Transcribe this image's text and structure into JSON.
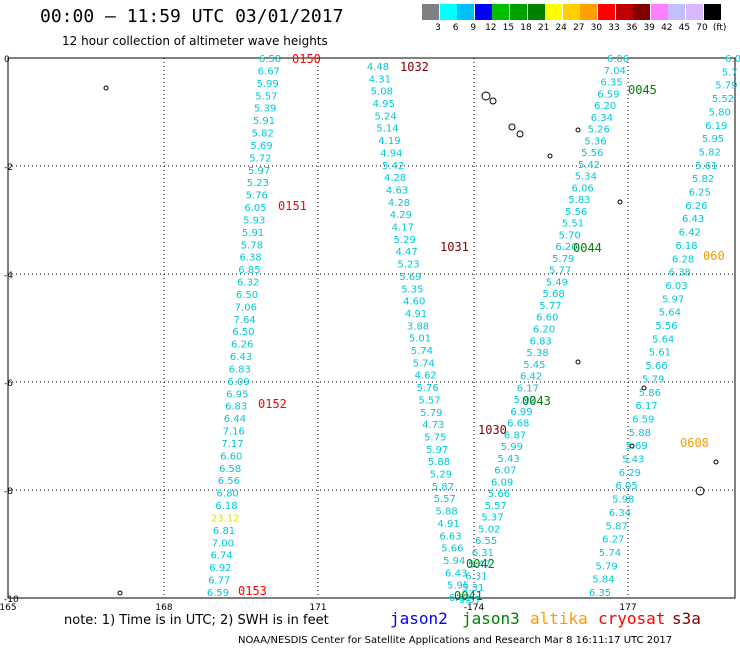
{
  "header": {
    "title": "00:00 — 11:59 UTC 03/01/2017",
    "subtitle": "12 hour collection of altimeter wave heights"
  },
  "color_legend": {
    "ticks": [
      "3",
      "6",
      "9",
      "12",
      "15",
      "18",
      "21",
      "24",
      "27",
      "30",
      "33",
      "36",
      "39",
      "42",
      "45",
      "70",
      "(ft)"
    ],
    "colors": [
      "#808080",
      "#00ffff",
      "#00c0ff",
      "#0000ff",
      "#00c000",
      "#00a000",
      "#008000",
      "#ffff00",
      "#ffd000",
      "#ffa000",
      "#ff0000",
      "#c00000",
      "#800000",
      "#ff80ff",
      "#c0c0ff",
      "#d8b8ff",
      "#000000"
    ]
  },
  "axes": {
    "y_ticks": [
      "0",
      "-2",
      "-4",
      "-6",
      "-8",
      "-10"
    ],
    "x_ticks": [
      "165",
      "168",
      "171",
      "-174",
      "177"
    ]
  },
  "tracks": [
    {
      "name": "track-a",
      "color": "#00c8d8",
      "values": [
        "6.58",
        "6.67",
        "5.99",
        "5.57",
        "5.39",
        "5.91",
        "5.82",
        "5.69",
        "5.72",
        "5.97",
        "5.23",
        "5.76",
        "6.05",
        "5.93",
        "5.91",
        "5.78",
        "6.38",
        "6.85",
        "6.32",
        "6.50",
        "7.06",
        "7.64",
        "6.50",
        "6.26",
        "6.43",
        "6.83",
        "6.09",
        "6.95",
        "6.83",
        "6.44",
        "7.16",
        "7.17",
        "6.60",
        "6.58",
        "6.56",
        "6.80",
        "6.18",
        "23.12",
        "6.81",
        "7.00",
        "6.74",
        "6.92",
        "6.77",
        "6.59"
      ]
    },
    {
      "name": "track-b",
      "color": "#00c8d8",
      "values": [
        "4.48",
        "4.31",
        "5.08",
        "4.95",
        "5.24",
        "5.14",
        "4.19",
        "4.94",
        "5.42",
        "4.28",
        "4.63",
        "4.28",
        "4.29",
        "4.17",
        "5.29",
        "4.47",
        "5.23",
        "5.69",
        "5.35",
        "4.60",
        "4.91",
        "3.88",
        "5.01",
        "5.74",
        "5.74",
        "4.62",
        "5.76",
        "5.57",
        "5.79",
        "4.73",
        "5.75",
        "5.97",
        "5.88",
        "5.29",
        "5.87",
        "5.57",
        "5.88",
        "4.91",
        "6.63",
        "5.66",
        "5.94",
        "6.43",
        "5.95",
        "6.01"
      ]
    },
    {
      "name": "track-c",
      "color": "#00c8d8",
      "values": [
        "6.06",
        "7.04",
        "6.35",
        "6.59",
        "6.20",
        "6.34",
        "5.26",
        "5.36",
        "5.56",
        "5.42",
        "5.34",
        "6.06",
        "5.83",
        "5.56",
        "5.51",
        "5.70",
        "6.20",
        "5.79",
        "5.77",
        "5.49",
        "5.68",
        "5.77",
        "6.60",
        "6.20",
        "6.83",
        "5.38",
        "5.45",
        "6.42",
        "6.17",
        "5.92",
        "6.99",
        "6.68",
        "6.87",
        "5.99",
        "5.43",
        "6.07",
        "6.09",
        "5.66",
        "5.57",
        "5.37",
        "5.02",
        "6.55",
        "6.31",
        "5.47",
        "6.31",
        "5.31",
        "5.57"
      ]
    },
    {
      "name": "track-d",
      "color": "#00c8d8",
      "values": [
        "6.0",
        "5.7",
        "5.79",
        "5.52",
        "5.80",
        "6.19",
        "5.95",
        "5.82",
        "5.61",
        "5.82",
        "6.25",
        "6.26",
        "6.43",
        "6.42",
        "6.18",
        "6.28",
        "6.38",
        "6.03",
        "5.97",
        "5.64",
        "5.56",
        "5.64",
        "5.61",
        "5.66",
        "5.79",
        "5.86",
        "6.17",
        "6.59",
        "5.88",
        "5.69",
        "5.43",
        "6.29",
        "6.05",
        "5.98",
        "6.34",
        "5.87",
        "6.27",
        "5.74",
        "5.79",
        "5.84",
        "6.35"
      ]
    }
  ],
  "pass_labels": [
    {
      "text": "0150",
      "color": "#ff0000"
    },
    {
      "text": "0151",
      "color": "#ff0000"
    },
    {
      "text": "0152",
      "color": "#ff0000"
    },
    {
      "text": "0153",
      "color": "#ff0000"
    },
    {
      "text": "1032",
      "color": "#800000"
    },
    {
      "text": "1031",
      "color": "#800000"
    },
    {
      "text": "1030",
      "color": "#800000"
    },
    {
      "text": "0045",
      "color": "#008000"
    },
    {
      "text": "0044",
      "color": "#008000"
    },
    {
      "text": "0043",
      "color": "#008000"
    },
    {
      "text": "0042",
      "color": "#008000"
    },
    {
      "text": "0041",
      "color": "#008000"
    },
    {
      "text": "060",
      "color": "#ff9900"
    },
    {
      "text": "0608",
      "color": "#ff9900"
    }
  ],
  "footer": {
    "note": "note: 1) Time is in UTC; 2) SWH is in feet",
    "satellites": [
      {
        "name": "jason2",
        "color": "#0000ff"
      },
      {
        "name": "jason3",
        "color": "#008000"
      },
      {
        "name": "altika",
        "color": "#ff9900"
      },
      {
        "name": "cryosat",
        "color": "#ff0000"
      },
      {
        "name": "s3a",
        "color": "#800000"
      }
    ],
    "credit": "NOAA/NESDIS Center for Satellite Applications and Research    Mar  8 16:11:17 UTC 2017"
  }
}
